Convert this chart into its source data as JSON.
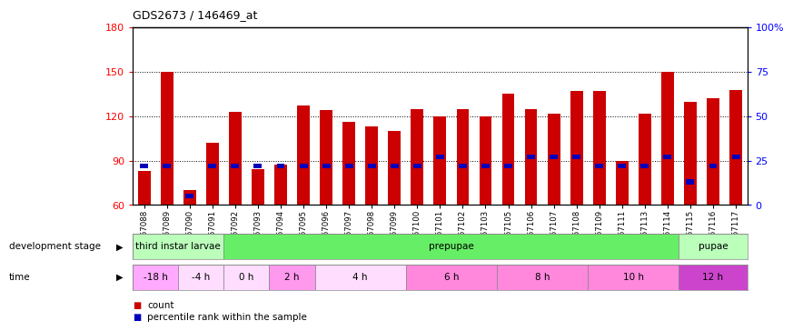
{
  "title": "GDS2673 / 146469_at",
  "samples": [
    "GSM67088",
    "GSM67089",
    "GSM67090",
    "GSM67091",
    "GSM67092",
    "GSM67093",
    "GSM67094",
    "GSM67095",
    "GSM67096",
    "GSM67097",
    "GSM67098",
    "GSM67099",
    "GSM67100",
    "GSM67101",
    "GSM67102",
    "GSM67103",
    "GSM67105",
    "GSM67106",
    "GSM67107",
    "GSM67108",
    "GSM67109",
    "GSM67111",
    "GSM67113",
    "GSM67114",
    "GSM67115",
    "GSM67116",
    "GSM67117"
  ],
  "count_values": [
    83,
    150,
    70,
    102,
    123,
    84,
    87,
    127,
    124,
    116,
    113,
    110,
    125,
    120,
    125,
    120,
    135,
    125,
    122,
    137,
    137,
    90,
    122,
    150,
    130,
    132,
    138
  ],
  "percentile_values": [
    22,
    22,
    5,
    22,
    22,
    22,
    22,
    22,
    22,
    22,
    22,
    22,
    22,
    27,
    22,
    22,
    22,
    27,
    27,
    27,
    22,
    22,
    22,
    27,
    13,
    22,
    27
  ],
  "ylim_left": [
    60,
    180
  ],
  "yticks_left": [
    60,
    90,
    120,
    150,
    180
  ],
  "yticks_right": [
    0,
    25,
    50,
    75,
    100
  ],
  "ytick_labels_right": [
    "0",
    "25",
    "50",
    "75",
    "100%"
  ],
  "bar_color": "#cc0000",
  "percentile_color": "#0000bb",
  "background_color": "#ffffff",
  "stage_spans": [
    {
      "label": "third instar larvae",
      "start": 0,
      "end": 4,
      "color": "#bbffbb"
    },
    {
      "label": "prepupae",
      "start": 4,
      "end": 24,
      "color": "#66ee66"
    },
    {
      "label": "pupae",
      "start": 24,
      "end": 27,
      "color": "#bbffbb"
    }
  ],
  "time_spans": [
    {
      "label": "-18 h",
      "start": 0,
      "end": 2,
      "color": "#ffaaff"
    },
    {
      "label": "-4 h",
      "start": 2,
      "end": 4,
      "color": "#ffddff"
    },
    {
      "label": "0 h",
      "start": 4,
      "end": 6,
      "color": "#ffddff"
    },
    {
      "label": "2 h",
      "start": 6,
      "end": 8,
      "color": "#ff99ee"
    },
    {
      "label": "4 h",
      "start": 8,
      "end": 12,
      "color": "#ffddff"
    },
    {
      "label": "6 h",
      "start": 12,
      "end": 16,
      "color": "#ff88dd"
    },
    {
      "label": "8 h",
      "start": 16,
      "end": 20,
      "color": "#ff88dd"
    },
    {
      "label": "10 h",
      "start": 20,
      "end": 24,
      "color": "#ff88dd"
    },
    {
      "label": "12 h",
      "start": 24,
      "end": 27,
      "color": "#cc44cc"
    }
  ],
  "legend_items": [
    "count",
    "percentile rank within the sample"
  ]
}
